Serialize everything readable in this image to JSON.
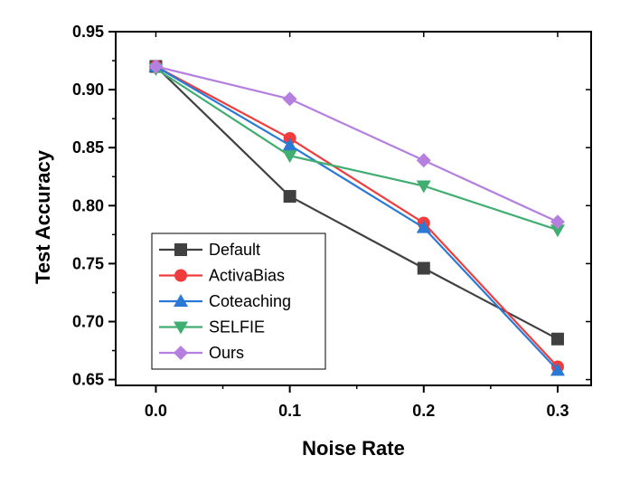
{
  "chart_data": {
    "type": "line",
    "title": "",
    "xlabel": "Noise Rate",
    "ylabel": "Test Accuracy",
    "x": [
      0.0,
      0.1,
      0.2,
      0.3
    ],
    "x_tick_labels": [
      "0.0",
      "0.1",
      "0.2",
      "0.3"
    ],
    "xlim": [
      -0.03,
      0.325
    ],
    "ylim": [
      0.645,
      0.95
    ],
    "y_ticks": [
      0.65,
      0.7,
      0.75,
      0.8,
      0.85,
      0.9,
      0.95
    ],
    "y_tick_labels": [
      "0.65",
      "0.70",
      "0.75",
      "0.80",
      "0.85",
      "0.90",
      "0.95"
    ],
    "grid": false,
    "legend_position": "bottom-left",
    "series": [
      {
        "name": "Default",
        "color": "#404040",
        "marker": "square",
        "values": [
          0.92,
          0.808,
          0.746,
          0.685
        ]
      },
      {
        "name": "ActivaBias",
        "color": "#f03c3c",
        "marker": "circle",
        "values": [
          0.92,
          0.858,
          0.785,
          0.661
        ]
      },
      {
        "name": "Coteaching",
        "color": "#2a7ad5",
        "marker": "triangle-up",
        "values": [
          0.92,
          0.852,
          0.781,
          0.658
        ]
      },
      {
        "name": "SELFIE",
        "color": "#3fae70",
        "marker": "triangle-down",
        "values": [
          0.918,
          0.843,
          0.817,
          0.779
        ]
      },
      {
        "name": "Ours",
        "color": "#b57fe0",
        "marker": "diamond",
        "values": [
          0.92,
          0.892,
          0.839,
          0.786
        ]
      }
    ]
  }
}
